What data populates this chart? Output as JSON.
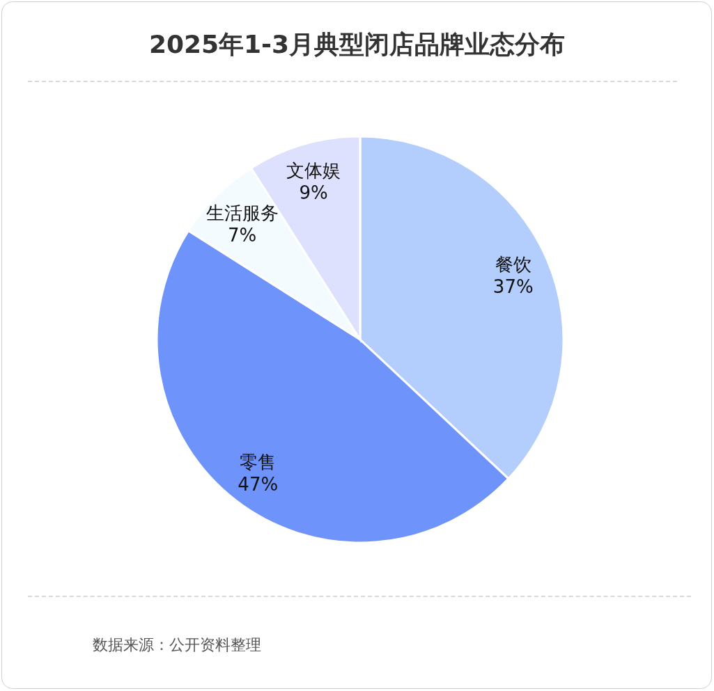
{
  "chart_data": {
    "type": "pie",
    "title": "2025年1-3月典型闭店品牌业态分布",
    "categories": [
      "餐饮",
      "零售",
      "生活服务",
      "文体娱"
    ],
    "values": [
      37,
      47,
      7,
      9
    ],
    "value_labels": [
      "37%",
      "47%",
      "7%",
      "9%"
    ],
    "colors": [
      "#b3cdfd",
      "#6e94fb",
      "#f4fbff",
      "#dde1fd"
    ],
    "annotations": [
      "数据来源：公开资料整理"
    ],
    "legend": false
  }
}
